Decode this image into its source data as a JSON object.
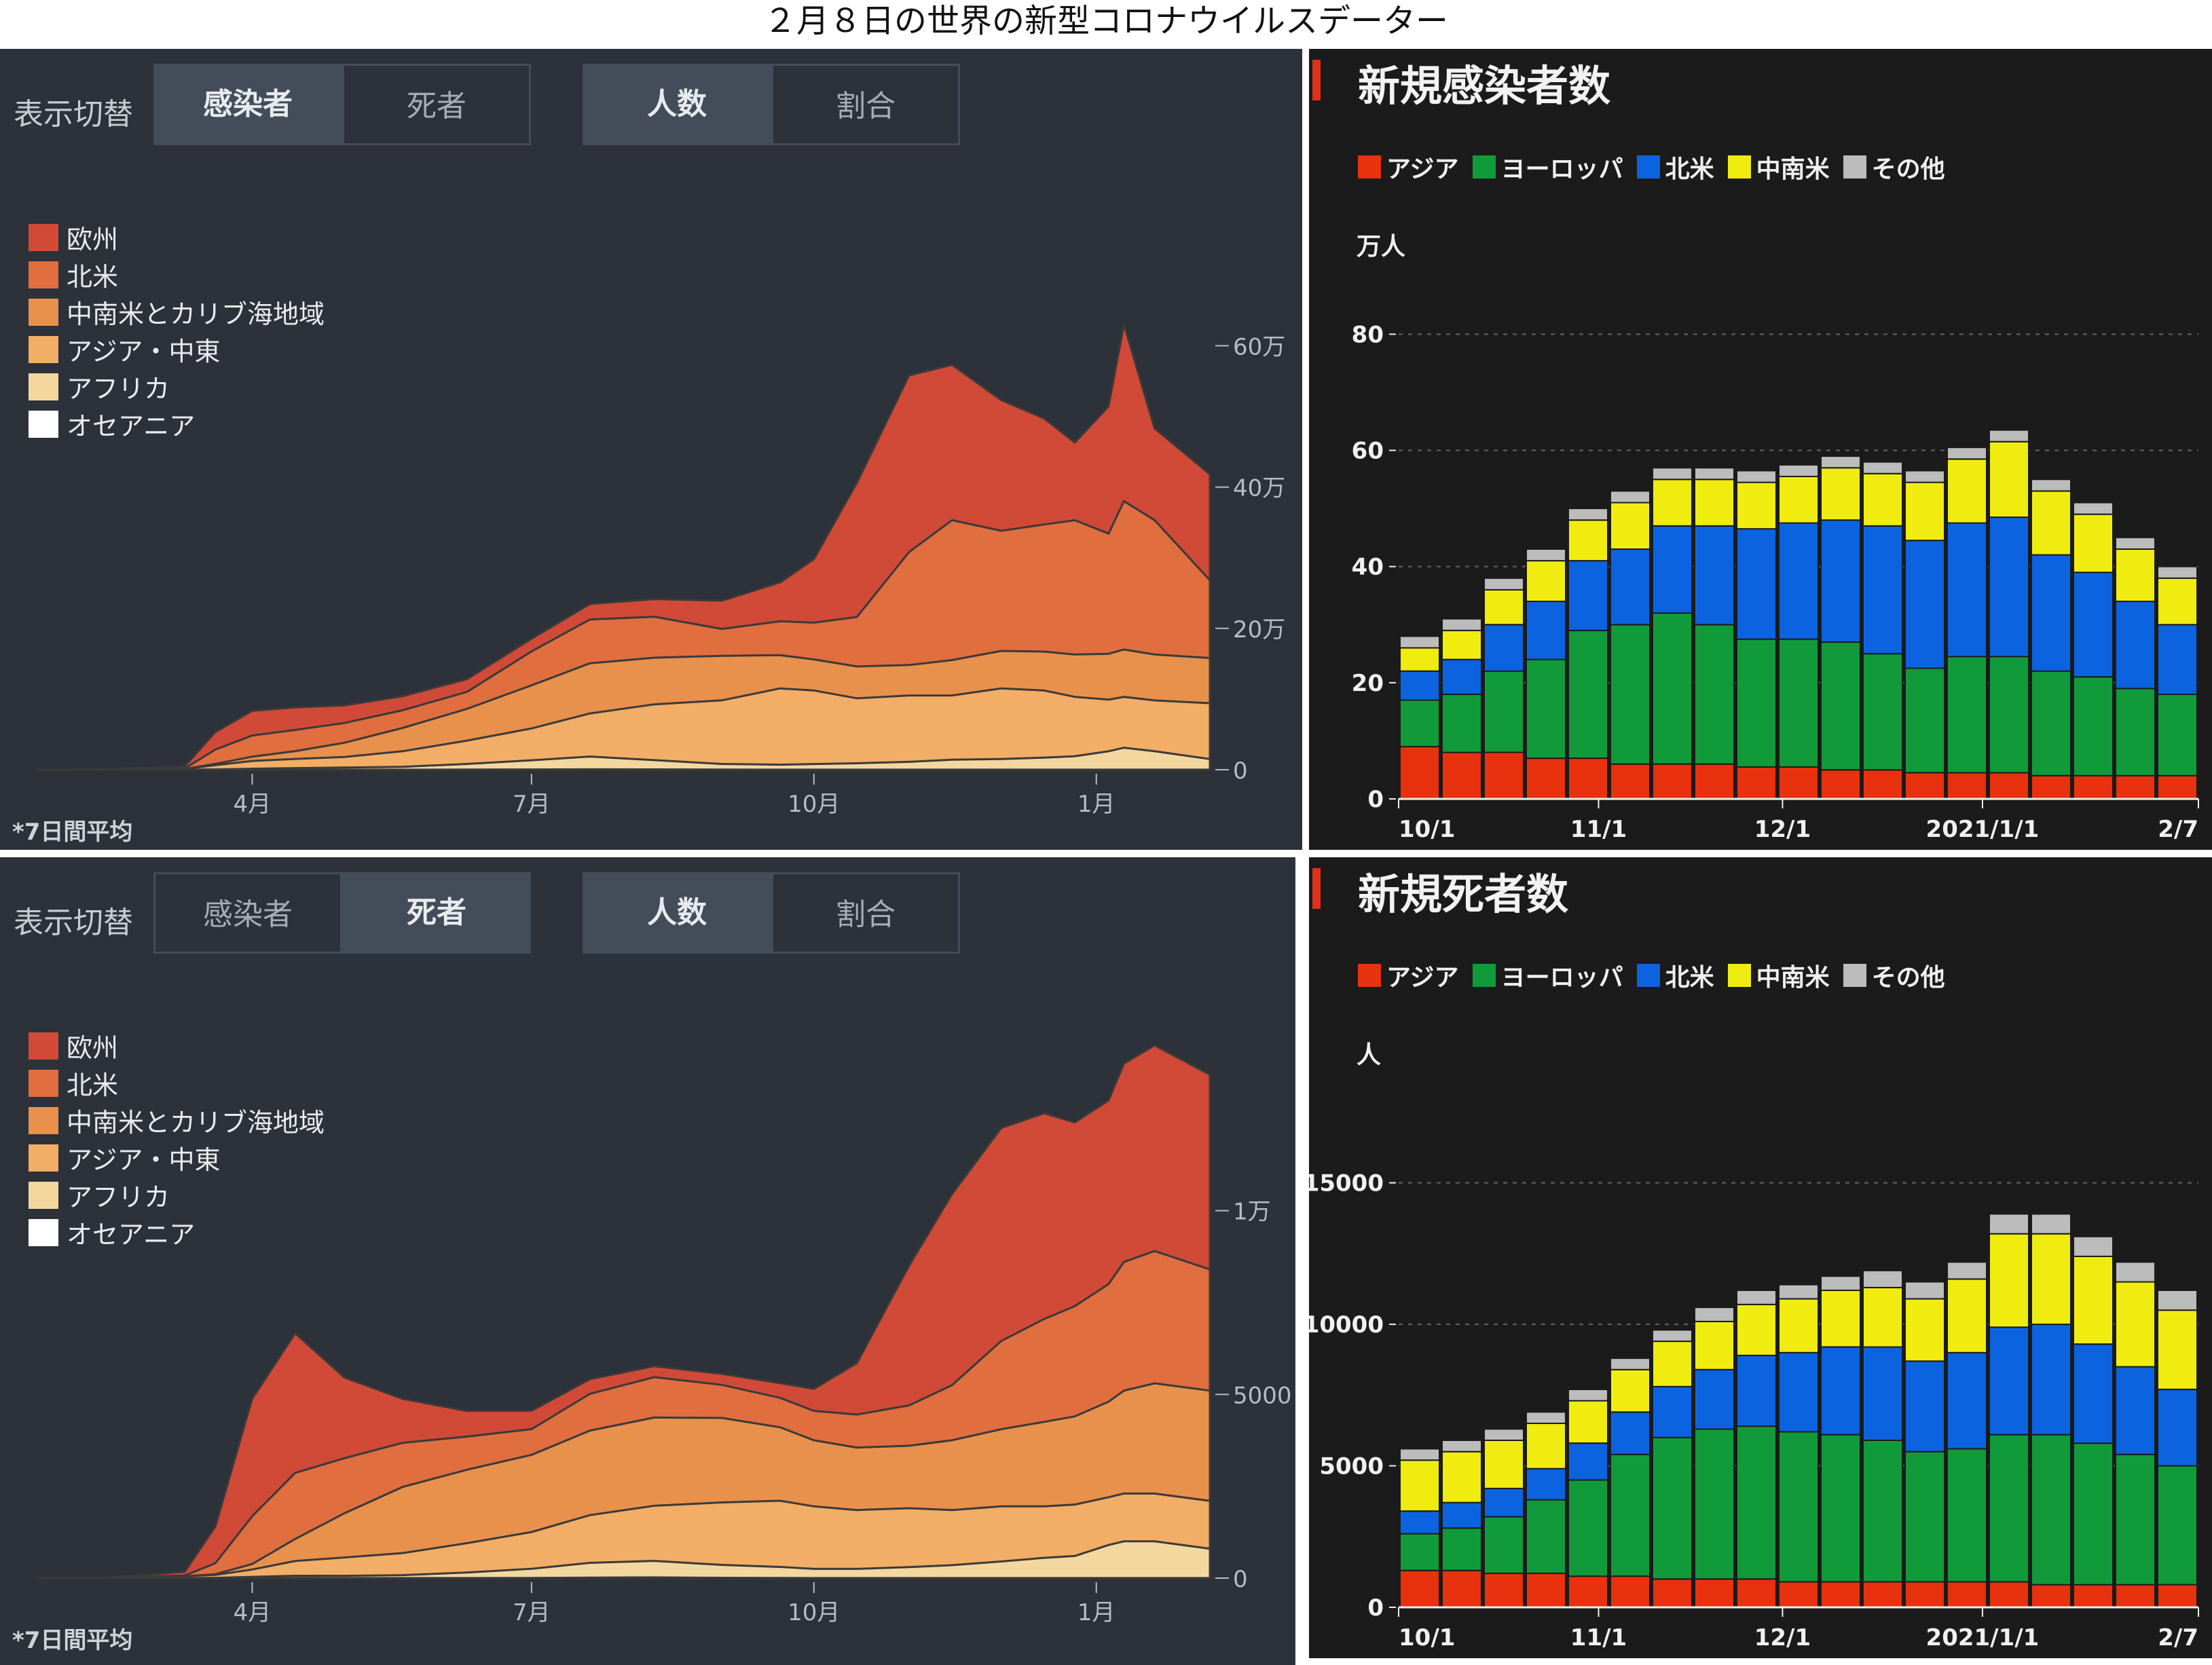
{
  "title": "２月８日の世界の新型コロナウイルスデーター",
  "left_panels": [
    {
      "toggle_label": "表示切替",
      "buttons": [
        {
          "label": "感染者",
          "active": true
        },
        {
          "label": "死者",
          "active": false
        },
        {
          "label": "人数",
          "active": true
        },
        {
          "label": "割合",
          "active": false
        }
      ],
      "legend": [
        {
          "name": "欧州",
          "color": "#d04a37"
        },
        {
          "name": "北米",
          "color": "#e06e3f"
        },
        {
          "name": "中南米とカリブ海地域",
          "color": "#e8914c"
        },
        {
          "name": "アジア・中東",
          "color": "#f2ad66"
        },
        {
          "name": "アフリカ",
          "color": "#f4d79e"
        },
        {
          "name": "オセアニア",
          "color": "#ffffff"
        }
      ],
      "note": "*7日間平均",
      "x_ticks": [
        "4月",
        "7月",
        "10月",
        "1月"
      ],
      "y_ticks": [
        {
          "value": 0,
          "label": "0"
        },
        {
          "value": 200000,
          "label": "20万"
        },
        {
          "value": 400000,
          "label": "40万"
        },
        {
          "value": 600000,
          "label": "60万"
        }
      ],
      "ymax": 780000
    },
    {
      "toggle_label": "表示切替",
      "buttons": [
        {
          "label": "感染者",
          "active": false
        },
        {
          "label": "死者",
          "active": true
        },
        {
          "label": "人数",
          "active": true
        },
        {
          "label": "割合",
          "active": false
        }
      ],
      "legend": [
        {
          "name": "欧州",
          "color": "#d04a37"
        },
        {
          "name": "北米",
          "color": "#e06e3f"
        },
        {
          "name": "中南米とカリブ海地域",
          "color": "#e8914c"
        },
        {
          "name": "アジア・中東",
          "color": "#f2ad66"
        },
        {
          "name": "アフリカ",
          "color": "#f4d79e"
        },
        {
          "name": "オセアニア",
          "color": "#ffffff"
        }
      ],
      "note": "*7日間平均",
      "x_ticks": [
        "4月",
        "7月",
        "10月",
        "1月"
      ],
      "y_ticks": [
        {
          "value": 0,
          "label": "0"
        },
        {
          "value": 5000,
          "label": "5000"
        },
        {
          "value": 10000,
          "label": "1万"
        }
      ],
      "ymax": 15000
    }
  ],
  "right_panels": [
    {
      "title": "新規感染者数",
      "legend": [
        {
          "name": "アジア",
          "color": "#e8310e"
        },
        {
          "name": "ヨーロッパ",
          "color": "#119a3a"
        },
        {
          "name": "北米",
          "color": "#0c63e0"
        },
        {
          "name": "中南米",
          "color": "#f0ec10"
        },
        {
          "name": "その他",
          "color": "#bcbcbc"
        }
      ],
      "unit": "万人",
      "y_ticks": [
        0,
        20,
        40,
        60,
        80
      ],
      "ymax": 95,
      "x_ticks": [
        "10/1",
        "11/1",
        "12/1",
        "2021/1/1",
        "2/7"
      ]
    },
    {
      "title": "新規死者数",
      "legend": [
        {
          "name": "アジア",
          "color": "#e8310e"
        },
        {
          "name": "ヨーロッパ",
          "color": "#119a3a"
        },
        {
          "name": "北米",
          "color": "#0c63e0"
        },
        {
          "name": "中南米",
          "color": "#f0ec10"
        },
        {
          "name": "その他",
          "color": "#bcbcbc"
        }
      ],
      "unit": "人",
      "y_ticks": [
        0,
        5000,
        10000,
        15000
      ],
      "ymax": 19500,
      "x_ticks": [
        "10/1",
        "11/1",
        "12/1",
        "2021/1/1",
        "2/7"
      ]
    }
  ],
  "chart_data": [
    {
      "type": "area",
      "title": "",
      "x": [
        "2020-01-22",
        "2020-02-15",
        "2020-03-10",
        "2020-03-20",
        "2020-04-01",
        "2020-04-15",
        "2020-05-01",
        "2020-05-20",
        "2020-06-10",
        "2020-07-01",
        "2020-07-20",
        "2020-08-10",
        "2020-09-01",
        "2020-09-20",
        "2020-10-01",
        "2020-10-15",
        "2020-11-01",
        "2020-11-15",
        "2020-12-01",
        "2020-12-15",
        "2020-12-25",
        "2021-01-05",
        "2021-01-10",
        "2021-01-20",
        "2021-02-07"
      ],
      "series": [
        {
          "name": "オセアニア",
          "values": [
            0,
            0,
            0,
            200,
            400,
            300,
            100,
            100,
            200,
            400,
            600,
            500,
            200,
            100,
            100,
            100,
            100,
            100,
            100,
            100,
            100,
            100,
            100,
            100,
            100
          ]
        },
        {
          "name": "アフリカ",
          "values": [
            0,
            0,
            0,
            200,
            1000,
            2000,
            3000,
            4000,
            8000,
            13000,
            18000,
            13000,
            8000,
            7000,
            8000,
            9000,
            11000,
            14000,
            15000,
            17000,
            19000,
            26000,
            31000,
            26000,
            15000
          ]
        },
        {
          "name": "アジア・中東",
          "values": [
            200,
            500,
            1000,
            6000,
            11000,
            13000,
            15000,
            22000,
            33000,
            45000,
            61000,
            79000,
            90000,
            108000,
            104000,
            92000,
            94000,
            91000,
            100000,
            95000,
            84000,
            73000,
            72000,
            72000,
            79000
          ]
        },
        {
          "name": "中南米とカリブ海地域",
          "values": [
            0,
            0,
            0,
            2000,
            6000,
            11000,
            20000,
            33000,
            45000,
            61000,
            71000,
            66000,
            63000,
            47000,
            44000,
            45000,
            43000,
            50000,
            53000,
            55000,
            60000,
            65000,
            67000,
            65000,
            64000
          ]
        },
        {
          "name": "北米",
          "values": [
            0,
            100,
            600,
            20000,
            30000,
            30000,
            28000,
            25000,
            24000,
            48000,
            62000,
            58000,
            38000,
            48000,
            52000,
            70000,
            160000,
            198000,
            170000,
            180000,
            190000,
            170000,
            210000,
            190000,
            110000
          ]
        },
        {
          "name": "欧州",
          "values": [
            0,
            300,
            3000,
            25000,
            35000,
            32000,
            25000,
            20000,
            18000,
            18000,
            22000,
            25000,
            40000,
            55000,
            90000,
            190000,
            250000,
            220000,
            185000,
            150000,
            110000,
            180000,
            250000,
            130000,
            150000
          ]
        }
      ],
      "xlabel": "",
      "ylabel": "",
      "ylim": [
        0,
        780000
      ]
    },
    {
      "type": "area",
      "title": "",
      "x": [
        "2020-01-22",
        "2020-02-15",
        "2020-03-10",
        "2020-03-20",
        "2020-04-01",
        "2020-04-15",
        "2020-05-01",
        "2020-05-20",
        "2020-06-10",
        "2020-07-01",
        "2020-07-20",
        "2020-08-10",
        "2020-09-01",
        "2020-09-20",
        "2020-10-01",
        "2020-10-15",
        "2020-11-01",
        "2020-11-15",
        "2020-12-01",
        "2020-12-15",
        "2020-12-25",
        "2021-01-05",
        "2021-01-10",
        "2021-01-20",
        "2021-02-07"
      ],
      "series": [
        {
          "name": "オセアニア",
          "values": [
            0,
            0,
            0,
            2,
            5,
            5,
            2,
            1,
            1,
            5,
            15,
            20,
            10,
            5,
            2,
            2,
            2,
            2,
            2,
            2,
            2,
            2,
            2,
            2,
            2
          ]
        },
        {
          "name": "アフリカ",
          "values": [
            0,
            0,
            0,
            5,
            30,
            60,
            60,
            80,
            150,
            250,
            400,
            450,
            350,
            300,
            250,
            250,
            300,
            350,
            450,
            550,
            600,
            900,
            1000,
            1000,
            800
          ]
        },
        {
          "name": "アジア・中東",
          "values": [
            10,
            20,
            50,
            80,
            200,
            400,
            500,
            600,
            800,
            1000,
            1300,
            1500,
            1700,
            1800,
            1700,
            1600,
            1600,
            1500,
            1500,
            1400,
            1400,
            1300,
            1300,
            1300,
            1300
          ]
        },
        {
          "name": "中南米とカリブ海地域",
          "values": [
            0,
            0,
            0,
            20,
            150,
            600,
            1200,
            1800,
            2000,
            2100,
            2300,
            2400,
            2300,
            2000,
            1800,
            1700,
            1700,
            1900,
            2100,
            2300,
            2400,
            2600,
            2800,
            3000,
            3000
          ]
        },
        {
          "name": "北米",
          "values": [
            0,
            0,
            20,
            300,
            1300,
            1800,
            1500,
            1200,
            900,
            700,
            1000,
            1100,
            900,
            800,
            800,
            900,
            1100,
            1500,
            2400,
            2800,
            3000,
            3200,
            3500,
            3600,
            3300
          ]
        },
        {
          "name": "欧州",
          "values": [
            0,
            0,
            100,
            1000,
            3200,
            3800,
            2200,
            1200,
            700,
            500,
            400,
            300,
            300,
            400,
            600,
            1400,
            3800,
            5200,
            5800,
            5600,
            5000,
            5000,
            5400,
            5600,
            5300
          ]
        }
      ],
      "xlabel": "",
      "ylabel": "",
      "ylim": [
        0,
        15000
      ]
    },
    {
      "type": "bar",
      "title": "新規感染者数",
      "x": [
        "10/1",
        "10/8",
        "10/15",
        "10/22",
        "10/29",
        "11/5",
        "11/12",
        "11/19",
        "11/26",
        "12/3",
        "12/10",
        "12/17",
        "12/24",
        "12/31",
        "1/7",
        "1/14",
        "1/21",
        "1/28",
        "2/4"
      ],
      "series": [
        {
          "name": "アジア",
          "values": [
            9,
            8,
            8,
            7,
            7,
            6,
            6,
            6,
            5.5,
            5.5,
            5,
            5,
            4.5,
            4.5,
            4.5,
            4,
            4,
            4,
            4
          ]
        },
        {
          "name": "ヨーロッパ",
          "values": [
            8,
            10,
            14,
            17,
            22,
            24,
            26,
            24,
            22,
            22,
            22,
            20,
            18,
            20,
            20,
            18,
            17,
            15,
            14
          ]
        },
        {
          "name": "北米",
          "values": [
            5,
            6,
            8,
            10,
            12,
            13,
            15,
            17,
            19,
            20,
            21,
            22,
            22,
            23,
            24,
            20,
            18,
            15,
            12
          ]
        },
        {
          "name": "中南米",
          "values": [
            4,
            5,
            6,
            7,
            7,
            8,
            8,
            8,
            8,
            8,
            9,
            9,
            10,
            11,
            13,
            11,
            10,
            9,
            8
          ]
        },
        {
          "name": "その他",
          "values": [
            2,
            2,
            2,
            2,
            2,
            2,
            2,
            2,
            2,
            2,
            2,
            2,
            2,
            2,
            2,
            2,
            2,
            2,
            2
          ]
        }
      ],
      "xlabel": "",
      "ylabel": "万人",
      "ylim": [
        0,
        95
      ]
    },
    {
      "type": "bar",
      "title": "新規死者数",
      "x": [
        "10/1",
        "10/8",
        "10/15",
        "10/22",
        "10/29",
        "11/5",
        "11/12",
        "11/19",
        "11/26",
        "12/3",
        "12/10",
        "12/17",
        "12/24",
        "12/31",
        "1/7",
        "1/14",
        "1/21",
        "1/28",
        "2/4"
      ],
      "series": [
        {
          "name": "アジア",
          "values": [
            1300,
            1300,
            1200,
            1200,
            1100,
            1100,
            1000,
            1000,
            1000,
            900,
            900,
            900,
            900,
            900,
            900,
            800,
            800,
            800,
            800
          ]
        },
        {
          "name": "ヨーロッパ",
          "values": [
            1300,
            1500,
            2000,
            2600,
            3400,
            4300,
            5000,
            5300,
            5400,
            5300,
            5200,
            5000,
            4600,
            4700,
            5200,
            5300,
            5000,
            4600,
            4200
          ]
        },
        {
          "name": "北米",
          "values": [
            800,
            900,
            1000,
            1100,
            1300,
            1500,
            1800,
            2100,
            2500,
            2800,
            3100,
            3300,
            3200,
            3400,
            3800,
            3900,
            3500,
            3100,
            2700
          ]
        },
        {
          "name": "中南米",
          "values": [
            1800,
            1800,
            1700,
            1600,
            1500,
            1500,
            1600,
            1700,
            1800,
            1900,
            2000,
            2100,
            2200,
            2600,
            3300,
            3200,
            3100,
            3000,
            2800
          ]
        },
        {
          "name": "その他",
          "values": [
            400,
            400,
            400,
            400,
            400,
            400,
            400,
            500,
            500,
            500,
            500,
            600,
            600,
            600,
            700,
            700,
            700,
            700,
            700
          ]
        }
      ],
      "xlabel": "",
      "ylabel": "人",
      "ylim": [
        0,
        19500
      ]
    }
  ]
}
